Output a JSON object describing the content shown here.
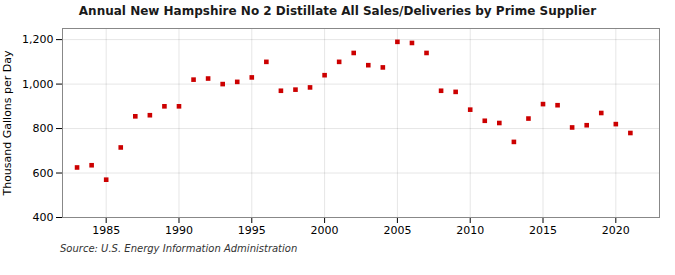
{
  "chart_data": {
    "type": "scatter",
    "title": "Annual New Hampshire No 2 Distillate All Sales/Deliveries by Prime Supplier",
    "ylabel": "Thousand Gallons per Day",
    "annotations": [
      "Source: U.S. Energy Information Administration"
    ],
    "x": [
      1983,
      1984,
      1985,
      1986,
      1987,
      1988,
      1989,
      1990,
      1991,
      1992,
      1993,
      1994,
      1995,
      1996,
      1997,
      1998,
      1999,
      2000,
      2001,
      2002,
      2003,
      2004,
      2005,
      2006,
      2007,
      2008,
      2009,
      2010,
      2011,
      2012,
      2013,
      2014,
      2015,
      2016,
      2017,
      2018,
      2019,
      2020,
      2021
    ],
    "values": [
      625,
      635,
      570,
      715,
      855,
      860,
      900,
      900,
      1020,
      1025,
      1000,
      1010,
      1030,
      1100,
      970,
      975,
      985,
      1040,
      1100,
      1140,
      1085,
      1075,
      1190,
      1185,
      1140,
      970,
      965,
      885,
      835,
      825,
      740,
      845,
      910,
      905,
      805,
      815,
      870,
      820,
      780
    ],
    "color": "#cc0000",
    "marker": "square",
    "xlim": [
      1982,
      2023
    ],
    "xticks": [
      1985,
      1990,
      1995,
      2000,
      2005,
      2010,
      2015,
      2020
    ],
    "ylim": [
      400,
      1250
    ],
    "yticks": [
      400,
      600,
      800,
      {
        "value": 1000,
        "label": "1,000"
      },
      {
        "value": 1200,
        "label": "1,200"
      }
    ],
    "grid": true
  }
}
